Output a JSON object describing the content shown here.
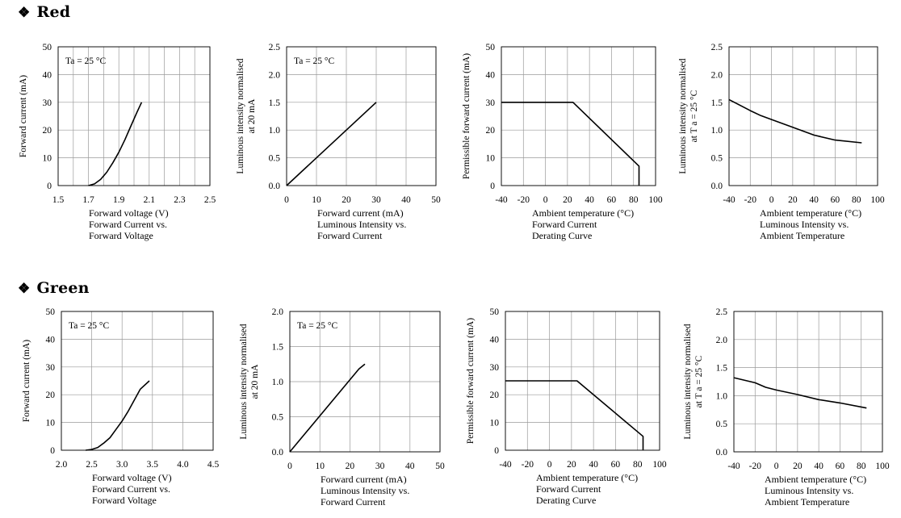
{
  "sections": [
    {
      "bullet": "❖",
      "title": "Red"
    },
    {
      "bullet": "❖",
      "title": "Green"
    }
  ],
  "chart_data": [
    {
      "type": "line",
      "section": "Red",
      "annotation": "Ta = 25 °C",
      "xlabel": "Forward voltage (V)",
      "ylabel": [
        "Forward current (mA)"
      ],
      "caption": [
        "Forward Current vs.",
        "Forward Voltage"
      ],
      "xlim": [
        1.5,
        2.5
      ],
      "ylim": [
        0,
        50
      ],
      "xticks": [
        1.5,
        1.7,
        1.9,
        2.1,
        2.3,
        2.5
      ],
      "xticklabels": [
        "1.5",
        "1.7",
        "1.9",
        "2.1",
        "2.3",
        "2.5"
      ],
      "xgrid": [
        1.5,
        1.6,
        1.7,
        1.8,
        1.9,
        2.0,
        2.1,
        2.2,
        2.3,
        2.4,
        2.5
      ],
      "yticks": [
        0,
        10,
        20,
        30,
        40,
        50
      ],
      "yticklabels": [
        "0",
        "10",
        "20",
        "30",
        "40",
        "50"
      ],
      "grid": true,
      "series": [
        {
          "x": [
            1.7,
            1.74,
            1.78,
            1.82,
            1.86,
            1.9,
            1.94,
            1.98,
            2.02,
            2.05
          ],
          "y": [
            0,
            0.6,
            2.2,
            4.8,
            8.2,
            12,
            16.5,
            21.5,
            26.5,
            30
          ]
        }
      ]
    },
    {
      "type": "line",
      "section": "Red",
      "annotation": "Ta = 25 °C",
      "xlabel": "Forward current (mA)",
      "ylabel": [
        "Luminous intensity normalised",
        "at 20 mA"
      ],
      "caption": [
        "Luminous Intensity vs.",
        "Forward Current"
      ],
      "xlim": [
        0,
        50
      ],
      "ylim": [
        0,
        2.5
      ],
      "xticks": [
        0,
        10,
        20,
        30,
        40,
        50
      ],
      "xticklabels": [
        "0",
        "10",
        "20",
        "30",
        "40",
        "50"
      ],
      "xgrid": [
        0,
        10,
        20,
        30,
        40,
        50
      ],
      "yticks": [
        0,
        0.5,
        1.0,
        1.5,
        2.0,
        2.5
      ],
      "yticklabels": [
        "0.0",
        "0.5",
        "1.0",
        "1.5",
        "2.0",
        "2.5"
      ],
      "grid": true,
      "series": [
        {
          "x": [
            0,
            30
          ],
          "y": [
            0,
            1.5
          ]
        }
      ]
    },
    {
      "type": "line",
      "section": "Red",
      "annotation": "",
      "xlabel": "Ambient temperature (°C)",
      "ylabel": [
        "Permissible forward current (mA)"
      ],
      "caption": [
        "Forward Current",
        "Derating  Curve"
      ],
      "xlim": [
        -40,
        100
      ],
      "ylim": [
        0,
        50
      ],
      "xticks": [
        -40,
        -20,
        0,
        20,
        40,
        60,
        80,
        100
      ],
      "xticklabels": [
        "-40",
        "-20",
        "0",
        "20",
        "40",
        "60",
        "80",
        "100"
      ],
      "xgrid": [
        -40,
        -20,
        0,
        20,
        40,
        60,
        80,
        100
      ],
      "yticks": [
        0,
        10,
        20,
        30,
        40,
        50
      ],
      "yticklabels": [
        "0",
        "10",
        "20",
        "30",
        "40",
        "50"
      ],
      "grid": true,
      "series": [
        {
          "x": [
            -40,
            25,
            85,
            85
          ],
          "y": [
            30,
            30,
            7,
            0
          ]
        }
      ]
    },
    {
      "type": "line",
      "section": "Red",
      "annotation": "",
      "xlabel": "Ambient temperature (°C)",
      "ylabel": [
        "Luminous intensity normalised",
        "at T a = 25 °C"
      ],
      "caption": [
        "Luminous Intensity vs.",
        "Ambient Temperature"
      ],
      "xlim": [
        -40,
        100
      ],
      "ylim": [
        0,
        2.5
      ],
      "xticks": [
        -40,
        -20,
        0,
        20,
        40,
        60,
        80,
        100
      ],
      "xticklabels": [
        "-40",
        "-20",
        "0",
        "20",
        "40",
        "60",
        "80",
        "100"
      ],
      "xgrid": [
        -40,
        -20,
        0,
        20,
        40,
        60,
        80,
        100
      ],
      "yticks": [
        0,
        0.5,
        1.0,
        1.5,
        2.0,
        2.5
      ],
      "yticklabels": [
        "0.0",
        "0.5",
        "1.0",
        "1.5",
        "2.0",
        "2.5"
      ],
      "grid": true,
      "series": [
        {
          "x": [
            -40,
            -20,
            -10,
            0,
            20,
            40,
            60,
            85
          ],
          "y": [
            1.55,
            1.35,
            1.26,
            1.19,
            1.05,
            0.91,
            0.82,
            0.77
          ]
        }
      ]
    },
    {
      "type": "line",
      "section": "Green",
      "annotation": "Ta = 25 °C",
      "xlabel": "Forward voltage (V)",
      "ylabel": [
        "Forward current (mA)"
      ],
      "caption": [
        "Forward Current vs.",
        "Forward Voltage"
      ],
      "xlim": [
        2.0,
        4.5
      ],
      "ylim": [
        0,
        50
      ],
      "xticks": [
        2.0,
        2.5,
        3.0,
        3.5,
        4.0,
        4.5
      ],
      "xticklabels": [
        "2.0",
        "2.5",
        "3.0",
        "3.5",
        "4.0",
        "4.5"
      ],
      "xgrid": [
        2.0,
        2.5,
        3.0,
        3.5,
        4.0,
        4.5
      ],
      "yticks": [
        0,
        10,
        20,
        30,
        40,
        50
      ],
      "yticklabels": [
        "0",
        "10",
        "20",
        "30",
        "40",
        "50"
      ],
      "grid": true,
      "series": [
        {
          "x": [
            2.4,
            2.5,
            2.6,
            2.7,
            2.8,
            2.9,
            3.0,
            3.1,
            3.2,
            3.3,
            3.45
          ],
          "y": [
            0,
            0.3,
            1.0,
            2.6,
            4.5,
            7.5,
            10.5,
            14.0,
            18.0,
            22.0,
            25.0
          ]
        }
      ]
    },
    {
      "type": "line",
      "section": "Green",
      "annotation": "Ta = 25 °C",
      "xlabel": "Forward current (mA)",
      "ylabel": [
        "Luminous intensity normalised",
        "at 20 mA"
      ],
      "caption": [
        "Luminous Intensity vs.",
        "Forward Current"
      ],
      "xlim": [
        0,
        50
      ],
      "ylim": [
        0,
        2.0
      ],
      "xticks": [
        0,
        10,
        20,
        30,
        40,
        50
      ],
      "xticklabels": [
        "0",
        "10",
        "20",
        "30",
        "40",
        "50"
      ],
      "xgrid": [
        0,
        10,
        20,
        30,
        40,
        50
      ],
      "yticks": [
        0,
        0.5,
        1.0,
        1.5,
        2.0
      ],
      "yticklabels": [
        "0.0",
        "0.5",
        "1.0",
        "1.5",
        "2.0"
      ],
      "grid": true,
      "series": [
        {
          "x": [
            0,
            23,
            25
          ],
          "y": [
            0,
            1.18,
            1.25
          ]
        }
      ]
    },
    {
      "type": "line",
      "section": "Green",
      "annotation": "",
      "xlabel": "Ambient temperature (°C)",
      "ylabel": [
        "Permissible forward current (mA)"
      ],
      "caption": [
        "Forward Current",
        "Derating  Curve"
      ],
      "xlim": [
        -40,
        100
      ],
      "ylim": [
        0,
        50
      ],
      "xticks": [
        -40,
        -20,
        0,
        20,
        40,
        60,
        80,
        100
      ],
      "xticklabels": [
        "-40",
        "-20",
        "0",
        "20",
        "40",
        "60",
        "80",
        "100"
      ],
      "xgrid": [
        -40,
        -20,
        0,
        20,
        40,
        60,
        80,
        100
      ],
      "yticks": [
        0,
        10,
        20,
        30,
        40,
        50
      ],
      "yticklabels": [
        "0",
        "10",
        "20",
        "30",
        "40",
        "50"
      ],
      "grid": true,
      "series": [
        {
          "x": [
            -40,
            25,
            85,
            85
          ],
          "y": [
            25,
            25,
            5,
            0
          ]
        }
      ]
    },
    {
      "type": "line",
      "section": "Green",
      "annotation": "",
      "xlabel": "Ambient temperature (°C)",
      "ylabel": [
        "Luminous intensity normalised",
        "at T a = 25 °C"
      ],
      "caption": [
        "Luminous Intensity vs.",
        "Ambient Temperature"
      ],
      "xlim": [
        -40,
        100
      ],
      "ylim": [
        0,
        2.5
      ],
      "xticks": [
        -40,
        -20,
        0,
        20,
        40,
        60,
        80,
        100
      ],
      "xticklabels": [
        "-40",
        "-20",
        "0",
        "20",
        "40",
        "60",
        "80",
        "100"
      ],
      "xgrid": [
        -40,
        -20,
        0,
        20,
        40,
        60,
        80,
        100
      ],
      "yticks": [
        0,
        0.5,
        1.0,
        1.5,
        2.0,
        2.5
      ],
      "yticklabels": [
        "0.0",
        "0.5",
        "1.0",
        "1.5",
        "2.0",
        "2.5"
      ],
      "grid": true,
      "series": [
        {
          "x": [
            -40,
            -20,
            -10,
            0,
            20,
            40,
            60,
            85
          ],
          "y": [
            1.32,
            1.23,
            1.15,
            1.1,
            1.02,
            0.93,
            0.87,
            0.78
          ]
        }
      ]
    }
  ]
}
